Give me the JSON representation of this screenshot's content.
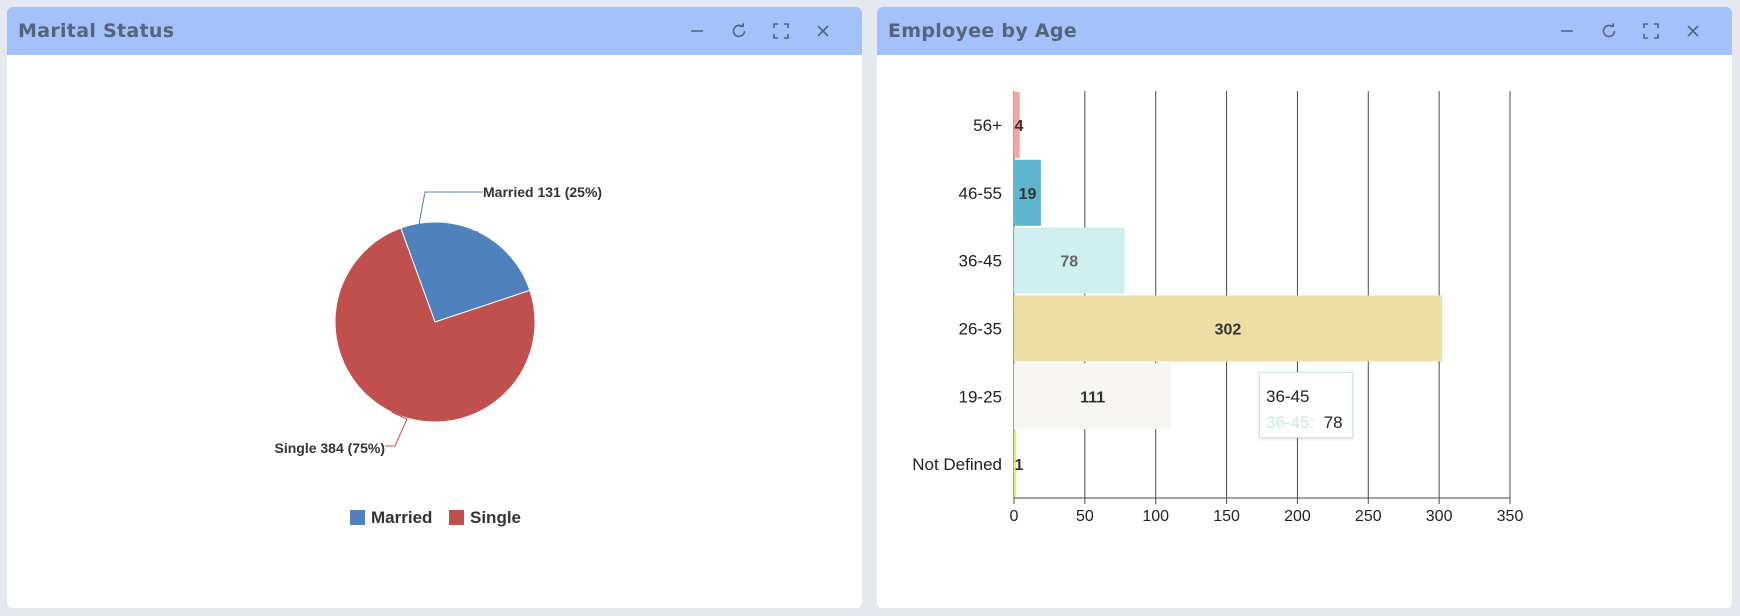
{
  "panels": {
    "marital": {
      "title": "Marital Status",
      "controls": [
        "minimize-icon",
        "refresh-icon",
        "fullscreen-icon",
        "close-icon"
      ]
    },
    "age": {
      "title": "Employee by Age",
      "controls": [
        "minimize-icon",
        "refresh-icon",
        "fullscreen-icon",
        "close-icon"
      ]
    }
  },
  "colors": {
    "header": "#a3c2fb",
    "married": "#4f81bd",
    "single": "#c0504d"
  },
  "chart_data": [
    {
      "type": "pie",
      "title": "",
      "slices": [
        {
          "name": "Married",
          "value": 131,
          "percent": 25,
          "label": "Married 131 (25%)",
          "color": "#4f81bd"
        },
        {
          "name": "Single",
          "value": 384,
          "percent": 75,
          "label": "Single 384 (75%)",
          "color": "#c0504d"
        }
      ],
      "legend": {
        "position": "bottom",
        "items": [
          "Married",
          "Single"
        ]
      }
    },
    {
      "type": "bar",
      "orientation": "horizontal",
      "title": "",
      "categories": [
        "56+",
        "46-55",
        "36-45",
        "26-35",
        "19-25",
        "Not Defined"
      ],
      "values": [
        4,
        19,
        78,
        302,
        111,
        1
      ],
      "value_labels": [
        "4",
        "19",
        "78",
        "302",
        "111",
        "1"
      ],
      "colors": [
        "#f4a4a2",
        "#5eb6ce",
        "#d0efef",
        "#ecdea4",
        "#f7f6f3",
        "#f2ea6c"
      ],
      "label_colors": [
        "#333333",
        "#333333",
        "#666666",
        "#333333",
        "#333333",
        "#333333"
      ],
      "xlim": [
        0,
        350
      ],
      "xticks": [
        "0",
        "50",
        "100",
        "150",
        "200",
        "250",
        "300",
        "350"
      ],
      "grid": true,
      "tooltip": {
        "title": "36-45",
        "series_label": "36-45:",
        "value": "78"
      }
    }
  ]
}
